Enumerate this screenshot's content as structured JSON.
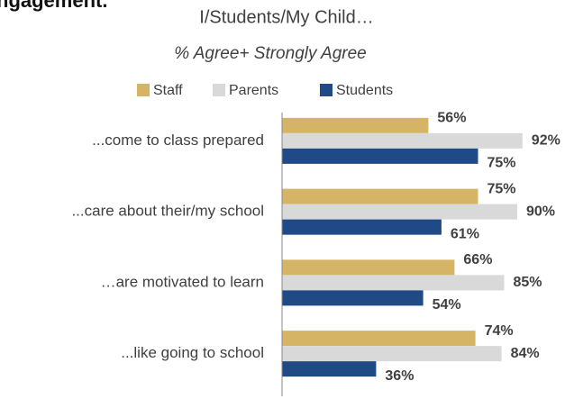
{
  "chart_data": {
    "type": "hbar",
    "heading": "ngagement.",
    "title": "I/Students/My Child…",
    "subtitle": "% Agree+ Strongly Agree",
    "categories": [
      "...come to class prepared",
      "...care about their/my school",
      "…are motivated to learn",
      "...like going to school"
    ],
    "series": [
      {
        "name": "Staff",
        "color": "#d6b465",
        "values": [
          56,
          75,
          66,
          74
        ],
        "value_labels": [
          "56%",
          "75%",
          "66%",
          "74%"
        ]
      },
      {
        "name": "Parents",
        "color": "#d9d9d9",
        "values": [
          92,
          90,
          85,
          84
        ],
        "value_labels": [
          "92%",
          "90%",
          "85%",
          "84%"
        ]
      },
      {
        "name": "Students",
        "color": "#1f4a86",
        "values": [
          75,
          61,
          54,
          36
        ],
        "value_labels": [
          "75%",
          "61%",
          "54%",
          "36%"
        ]
      }
    ],
    "xlim": [
      0,
      100
    ]
  }
}
